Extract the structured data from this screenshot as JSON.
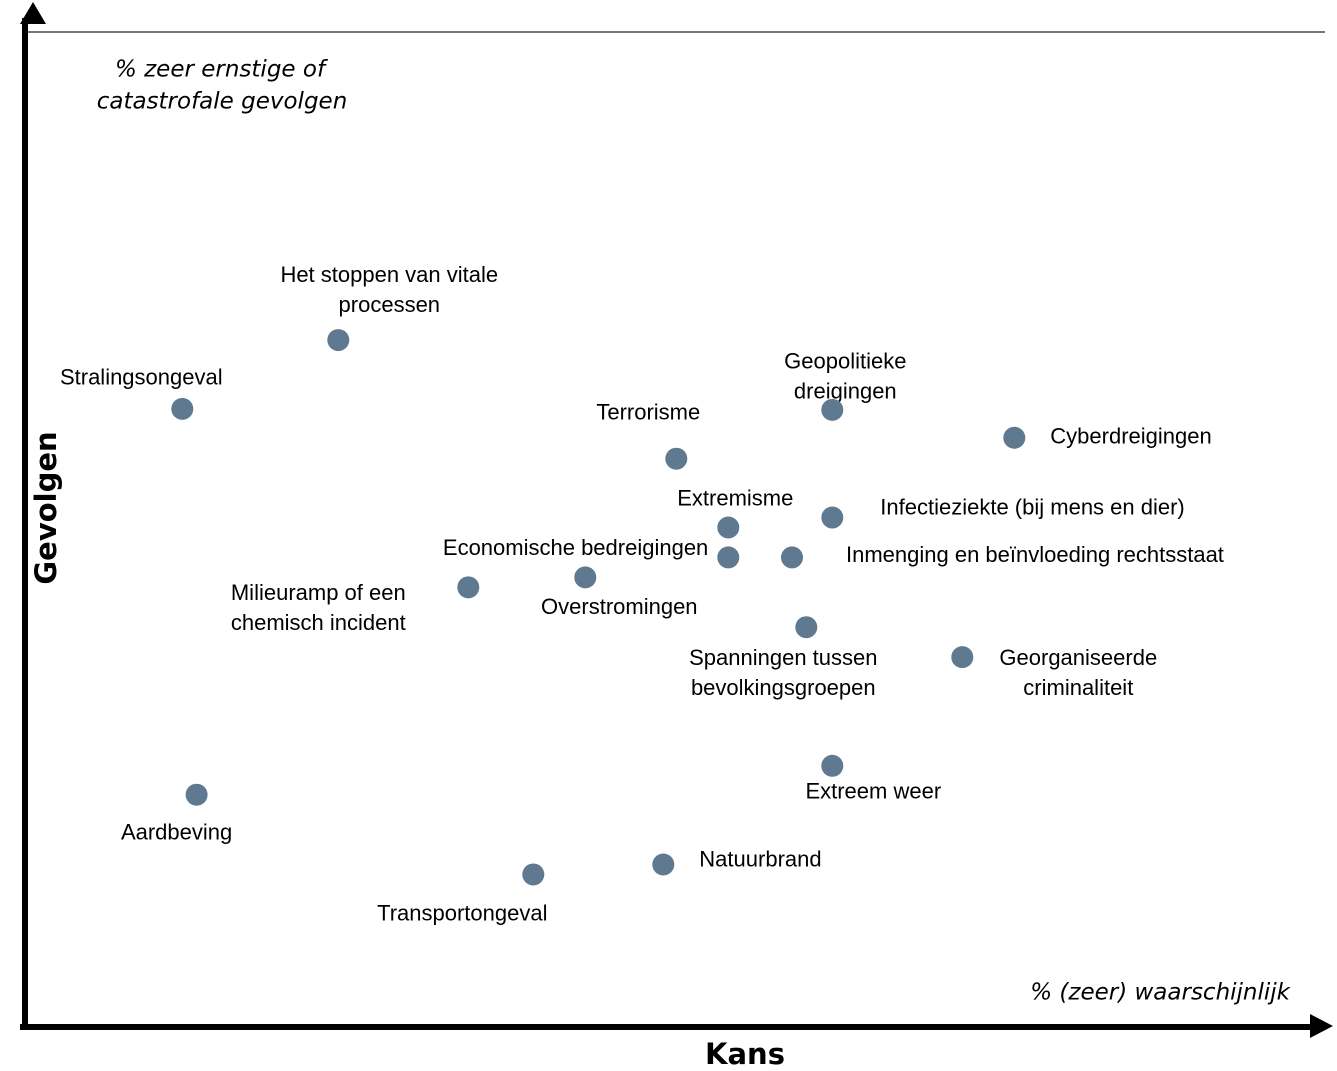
{
  "chart_data": {
    "type": "scatter",
    "x_label": "Kans",
    "y_label": "Gevolgen",
    "x_annotation": "% (zeer) waarschijnlijk",
    "y_annotation": [
      "% zeer ernstige of",
      "catastrofale gevolgen"
    ],
    "color": "#5f7a90",
    "xlim": [
      0,
      100
    ],
    "ylim": [
      0,
      100
    ],
    "points": [
      {
        "label": [
          "Stralingsongeval"
        ],
        "x": 12.1,
        "y": 62.0
      },
      {
        "label": [
          "Het stoppen van vitale",
          "processen"
        ],
        "x": 24.1,
        "y": 68.9
      },
      {
        "label": [
          "Geopolitieke",
          "dreigingen"
        ],
        "x": 62.1,
        "y": 61.9
      },
      {
        "label": [
          "Cyberdreigingen"
        ],
        "x": 76.1,
        "y": 59.1
      },
      {
        "label": [
          "Terrorisme"
        ],
        "x": 50.1,
        "y": 57.0
      },
      {
        "label": [
          "Infectieziekte (bij mens en dier)"
        ],
        "x": 62.1,
        "y": 51.1
      },
      {
        "label": [
          "Extremisme"
        ],
        "x": 54.1,
        "y": 50.1
      },
      {
        "label": [
          "Economische bedreigingen"
        ],
        "x": 54.1,
        "y": 47.1
      },
      {
        "label": [
          "Inmenging en beïnvloeding rechtsstaat"
        ],
        "x": 59.0,
        "y": 47.1
      },
      {
        "label": [
          "Overstromingen"
        ],
        "x": 43.1,
        "y": 45.1
      },
      {
        "label": [
          "Milieuramp of een",
          "chemisch incident"
        ],
        "x": 34.1,
        "y": 44.1
      },
      {
        "label": [
          "Spanningen tussen",
          "bevolkingsgroepen"
        ],
        "x": 60.1,
        "y": 40.1
      },
      {
        "label": [
          "Georganiseerde",
          "criminaliteit"
        ],
        "x": 72.1,
        "y": 37.1
      },
      {
        "label": [
          "Extreem weer"
        ],
        "x": 62.1,
        "y": 26.2
      },
      {
        "label": [
          "Aardbeving"
        ],
        "x": 13.2,
        "y": 23.3
      },
      {
        "label": [
          "Natuurbrand"
        ],
        "x": 49.1,
        "y": 16.3
      },
      {
        "label": [
          "Transportongeval"
        ],
        "x": 39.1,
        "y": 15.3
      }
    ]
  }
}
